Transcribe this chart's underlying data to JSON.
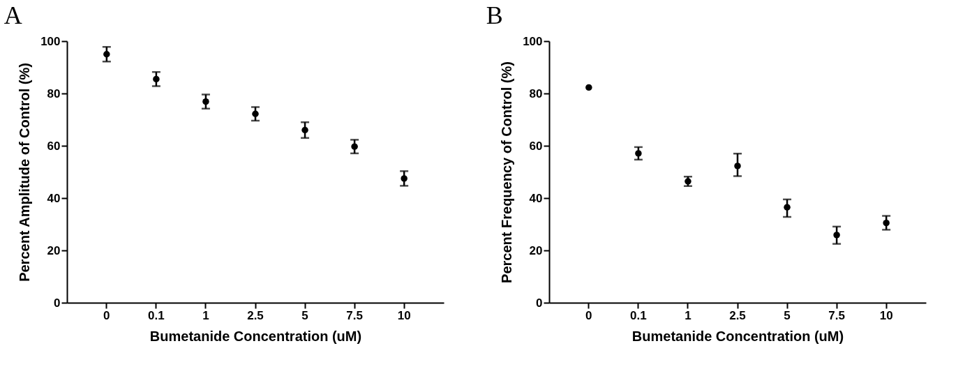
{
  "chart_data": [
    {
      "type": "scatter",
      "title": "A",
      "xlabel": "Bumetanide Concentration (uM)",
      "ylabel": "Percent Amplitude of Control (%)",
      "categories": [
        "0",
        "0.1",
        "1",
        "2.5",
        "5",
        "7.5",
        "10"
      ],
      "values": [
        95.0,
        85.5,
        76.9,
        72.2,
        66.0,
        59.7,
        47.5
      ],
      "errors": [
        2.8,
        2.7,
        2.7,
        2.6,
        3.0,
        2.6,
        2.8
      ],
      "color": "#000000",
      "marker": "circle",
      "ylim": [
        0,
        100
      ],
      "yticks": [
        0,
        20,
        40,
        60,
        80,
        100
      ],
      "grid": false
    },
    {
      "type": "scatter",
      "title": "B",
      "xlabel": "Bumetanide Concentration (uM)",
      "ylabel": "Percent Frequency of Control (%)",
      "categories": [
        "0",
        "0.1",
        "1",
        "2.5",
        "5",
        "7.5",
        "10"
      ],
      "values": [
        82.3,
        57.1,
        46.4,
        52.3,
        36.5,
        25.9,
        30.5
      ],
      "errors": [
        null,
        2.4,
        1.8,
        [
          48.4,
          57.0
        ],
        [
          32.8,
          39.5
        ],
        [
          22.5,
          29.1
        ],
        [
          27.9,
          33.2
        ]
      ],
      "color": "#000000",
      "marker": "circle",
      "ylim": [
        0,
        100
      ],
      "yticks": [
        0,
        20,
        40,
        60,
        80,
        100
      ],
      "grid": false
    }
  ]
}
